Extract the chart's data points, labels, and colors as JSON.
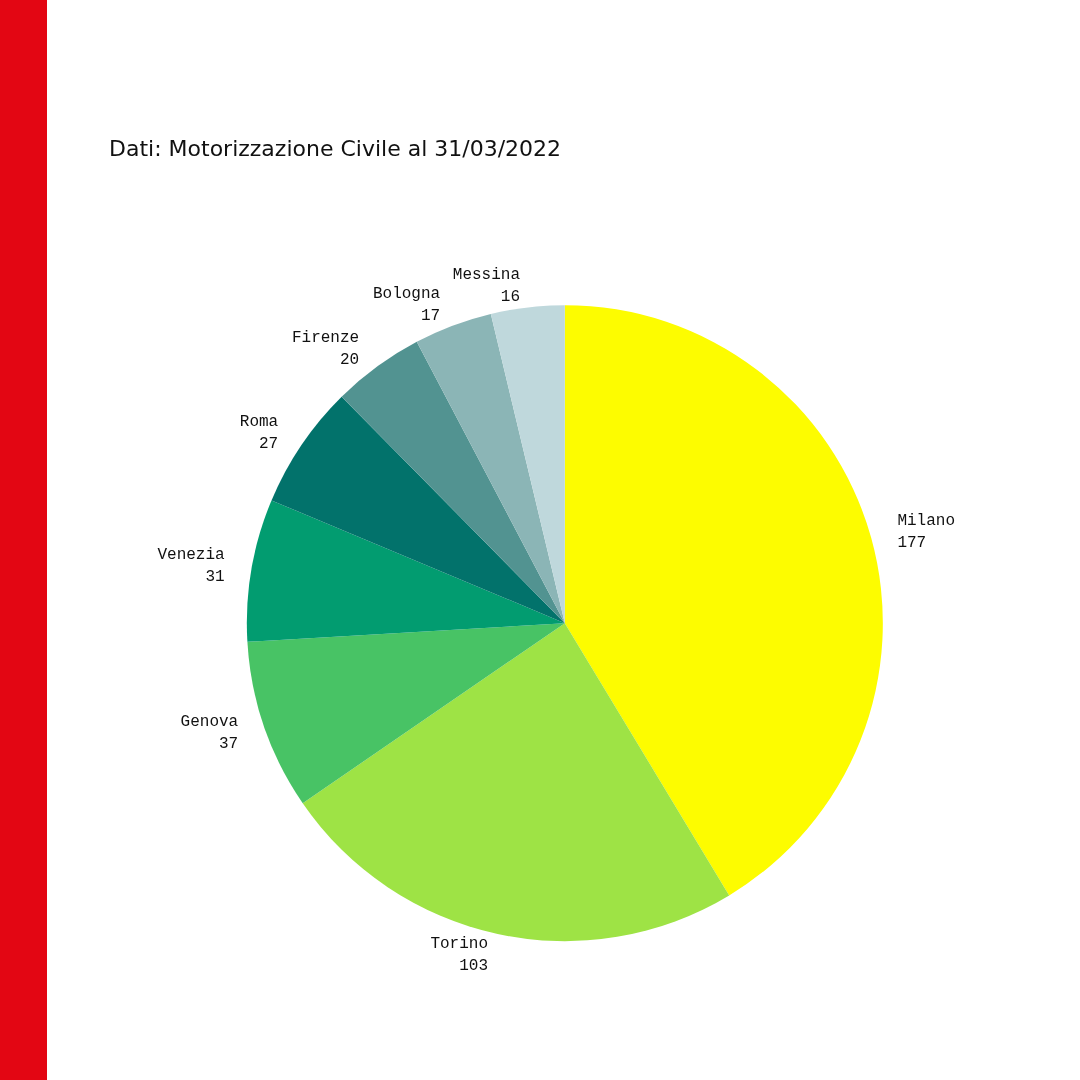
{
  "chart_data": {
    "type": "pie",
    "annotations": [
      "Dati: Motorizzazione Civile al 31/03/2022"
    ],
    "categories": [
      "Milano",
      "Torino",
      "Genova",
      "Venezia",
      "Roma",
      "Firenze",
      "Bologna",
      "Messina"
    ],
    "values": [
      177,
      103,
      37,
      31,
      27,
      20,
      17,
      16
    ],
    "colors": [
      "#fdfc00",
      "#9ee345",
      "#48c365",
      "#029c70",
      "#02726b",
      "#529391",
      "#8bb5b6",
      "#bfd8dc"
    ],
    "data_labels": true,
    "legend": false
  }
}
